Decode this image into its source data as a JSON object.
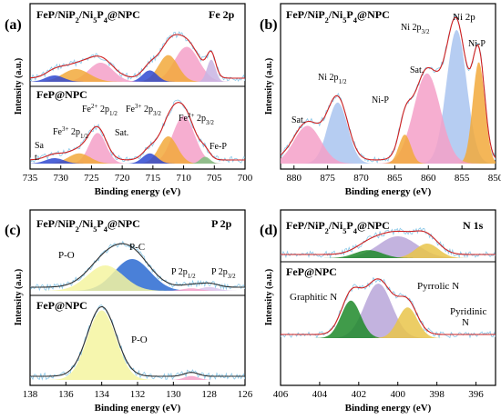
{
  "figure": {
    "panels": [
      {
        "id": "a",
        "letter": "(a)",
        "element_label": "Fe 2p",
        "xlabel": "Binding energy (eV)",
        "ylabel": "Intensity (a.u.)",
        "xlim": [
          735,
          700
        ],
        "xticks": [
          "735",
          "730",
          "725",
          "720",
          "715",
          "710",
          "705",
          "700"
        ],
        "traces": [
          {
            "label": "FeP/NiP<sub>2</sub>/Ni<sub>5</sub>P<sub>4</sub>@NPC"
          },
          {
            "label": "FeP@NPC"
          }
        ],
        "annotations": [
          "Fe<sup>3+</sup> 2p<sub>1/2</sub>",
          "Fe<sup>2+</sup> 2p<sub>1/2</sub>",
          "Fe<sup>3+</sup> 2p<sub>3/2</sub>",
          "Fe<sup>2+</sup> 2p<sub>3/2</sub>",
          "Sat.",
          "Sa",
          "t.",
          "Fe-P"
        ]
      },
      {
        "id": "b",
        "letter": "(b)",
        "xlabel": "Binding energy (eV)",
        "ylabel": "Intensity (a.u.)",
        "xlim": [
          882,
          850
        ],
        "xticks": [
          "880",
          "875",
          "870",
          "865",
          "860",
          "855",
          "850"
        ],
        "traces": [
          {
            "label": "FeP/NiP<sub>2</sub>/Ni<sub>5</sub>P<sub>4</sub>@NPC"
          }
        ],
        "annotations": [
          "Ni 2p",
          "Ni 2p<sub>3/2</sub>",
          "Ni-P",
          "Sat.",
          "Ni 2p<sub>1/2</sub>",
          "Ni-P",
          "Sat."
        ]
      },
      {
        "id": "c",
        "letter": "(c)",
        "element_label": "P 2p",
        "xlabel": "Binding energy (eV)",
        "ylabel": "Intensity (a.u.)",
        "xlim": [
          138,
          126
        ],
        "xticks": [
          "138",
          "136",
          "134",
          "132",
          "130",
          "128",
          "126"
        ],
        "traces": [
          {
            "label": "FeP/NiP<sub>2</sub>/Ni<sub>5</sub>P<sub>4</sub>@NPC"
          },
          {
            "label": "FeP@NPC"
          }
        ],
        "annotations": [
          "P-O",
          "P-C",
          "P 2p<sub>1/2</sub>",
          "P 2p<sub>3/2</sub>",
          "P-O"
        ]
      },
      {
        "id": "d",
        "letter": "(d)",
        "element_label": "N 1s",
        "xlabel": "Binding energy (eV)",
        "ylabel": "Intensity (a.u.)",
        "xlim": [
          406,
          395
        ],
        "xticks": [
          "406",
          "404",
          "402",
          "400",
          "398",
          "396"
        ],
        "traces": [
          {
            "label": "FeP/NiP<sub>2</sub>/Ni<sub>5</sub>P<sub>4</sub>@NPC"
          },
          {
            "label": "FeP@NPC"
          }
        ],
        "annotations": [
          "Pyrrolic N",
          "Graphitic N",
          "Pyridinic",
          "N"
        ]
      }
    ]
  },
  "chart_data": [
    {
      "type": "area",
      "panel": "a",
      "xlim": [
        735,
        700
      ],
      "series": [
        {
          "trace": 0,
          "center": 709.5,
          "height": 0.55,
          "width": 2.0,
          "color": "#f4a0c8"
        },
        {
          "trace": 0,
          "center": 712.5,
          "height": 0.42,
          "width": 1.6,
          "color": "#f2a93b"
        },
        {
          "trace": 0,
          "center": 715.5,
          "height": 0.18,
          "width": 1.2,
          "color": "#2f49d1"
        },
        {
          "trace": 0,
          "center": 705.5,
          "height": 0.35,
          "width": 0.7,
          "color": "#c8b4e3"
        },
        {
          "trace": 0,
          "center": 723.5,
          "height": 0.3,
          "width": 2.0,
          "color": "#f4a0c8"
        },
        {
          "trace": 0,
          "center": 727.5,
          "height": 0.2,
          "width": 2.2,
          "color": "#f2a93b"
        },
        {
          "trace": 0,
          "center": 731.0,
          "height": 0.1,
          "width": 1.5,
          "color": "#2f49d1"
        },
        {
          "trace": 1,
          "center": 710.0,
          "height": 0.7,
          "width": 1.8,
          "color": "#f4a0c8"
        },
        {
          "trace": 1,
          "center": 712.5,
          "height": 0.4,
          "width": 1.5,
          "color": "#f2a93b"
        },
        {
          "trace": 1,
          "center": 715.5,
          "height": 0.15,
          "width": 1.2,
          "color": "#2f49d1"
        },
        {
          "trace": 1,
          "center": 706.5,
          "height": 0.1,
          "width": 0.8,
          "color": "#7fbf7f"
        },
        {
          "trace": 1,
          "center": 724.0,
          "height": 0.45,
          "width": 1.4,
          "color": "#f4a0c8"
        },
        {
          "trace": 1,
          "center": 727.0,
          "height": 0.15,
          "width": 1.8,
          "color": "#f2a93b"
        },
        {
          "trace": 1,
          "center": 731.0,
          "height": 0.08,
          "width": 1.5,
          "color": "#2f49d1"
        }
      ]
    },
    {
      "type": "area",
      "panel": "b",
      "xlim": [
        882,
        850
      ],
      "series": [
        {
          "trace": 0,
          "center": 855.8,
          "height": 0.92,
          "width": 1.5,
          "color": "#a9c4f0"
        },
        {
          "trace": 0,
          "center": 852.5,
          "height": 0.7,
          "width": 0.9,
          "color": "#f2a93b"
        },
        {
          "trace": 0,
          "center": 860.2,
          "height": 0.62,
          "width": 2.0,
          "color": "#f4a0c8"
        },
        {
          "trace": 0,
          "center": 873.5,
          "height": 0.42,
          "width": 1.5,
          "color": "#a9c4f0"
        },
        {
          "trace": 0,
          "center": 878.0,
          "height": 0.26,
          "width": 2.0,
          "color": "#f4a0c8"
        },
        {
          "trace": 0,
          "center": 863.5,
          "height": 0.2,
          "width": 0.9,
          "color": "#f2a93b"
        }
      ]
    },
    {
      "type": "area",
      "panel": "c",
      "xlim": [
        138,
        126
      ],
      "series": [
        {
          "trace": 0,
          "center": 132.3,
          "height": 0.5,
          "width": 1.0,
          "color": "#2a6ad1"
        },
        {
          "trace": 0,
          "center": 133.8,
          "height": 0.4,
          "width": 1.0,
          "color": "#f5f5a0"
        },
        {
          "trace": 0,
          "center": 128.0,
          "height": 0.06,
          "width": 0.5,
          "color": "#d9c3ec"
        },
        {
          "trace": 0,
          "center": 129.0,
          "height": 0.04,
          "width": 0.5,
          "color": "#f4a0c8"
        },
        {
          "trace": 1,
          "center": 134.0,
          "height": 0.9,
          "width": 0.8,
          "color": "#f5f5a0"
        },
        {
          "trace": 1,
          "center": 129.0,
          "height": 0.05,
          "width": 0.4,
          "color": "#f4a0c8"
        }
      ]
    },
    {
      "type": "area",
      "panel": "d",
      "xlim": [
        406,
        395
      ],
      "series": [
        {
          "trace": 0,
          "center": 400.0,
          "height": 0.6,
          "width": 1.0,
          "color": "#b8a6d9"
        },
        {
          "trace": 0,
          "center": 398.5,
          "height": 0.4,
          "width": 0.6,
          "color": "#e9c44a"
        },
        {
          "trace": 0,
          "center": 401.5,
          "height": 0.22,
          "width": 0.7,
          "color": "#1e8a2a"
        },
        {
          "trace": 1,
          "center": 401.0,
          "height": 0.8,
          "width": 0.7,
          "color": "#b8a6d9"
        },
        {
          "trace": 1,
          "center": 402.4,
          "height": 0.55,
          "width": 0.5,
          "color": "#1e8a2a"
        },
        {
          "trace": 1,
          "center": 399.5,
          "height": 0.45,
          "width": 0.5,
          "color": "#e9c44a"
        }
      ]
    }
  ]
}
